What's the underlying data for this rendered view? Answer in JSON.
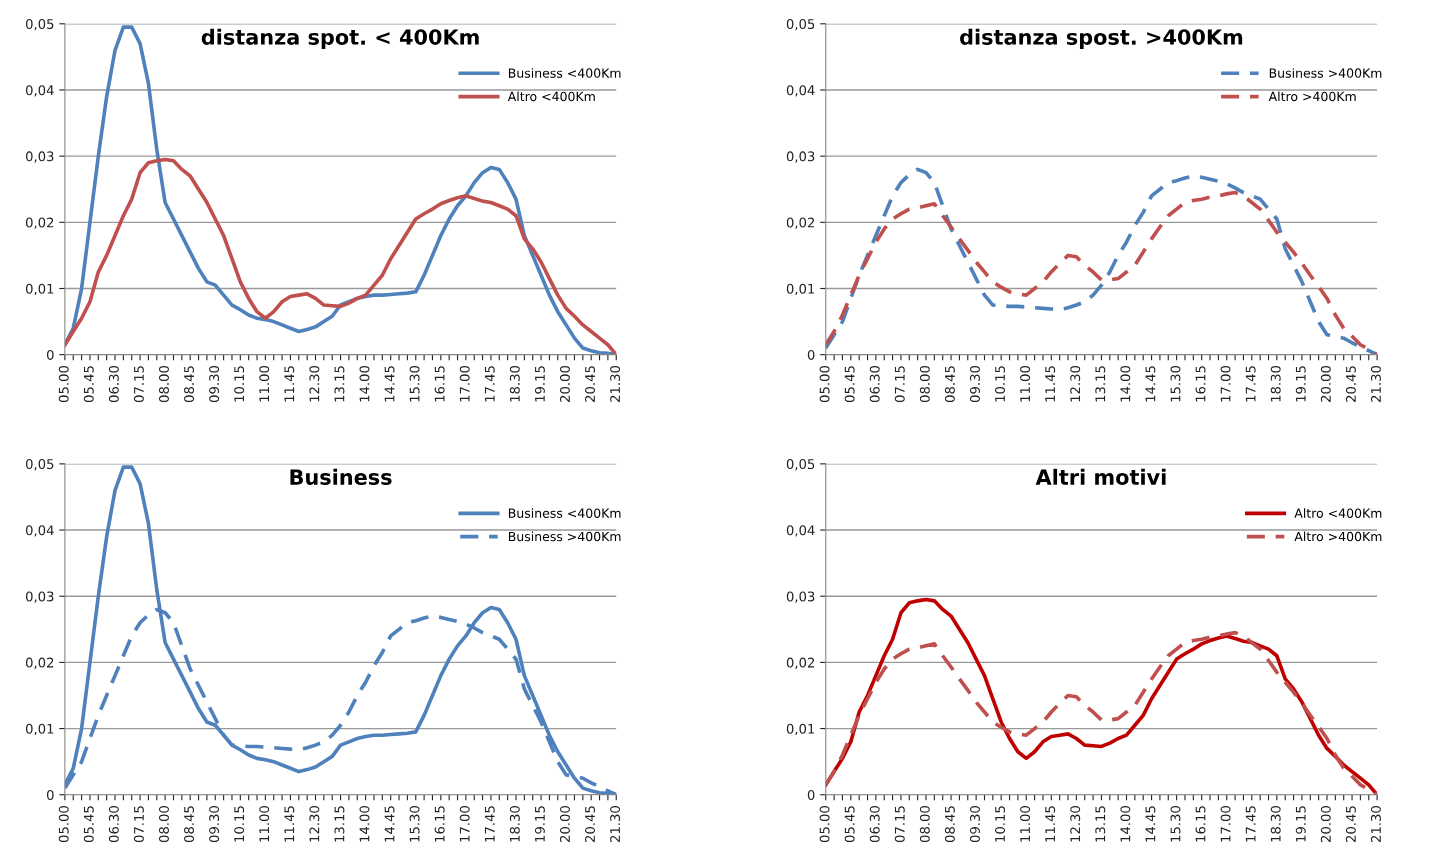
{
  "chart_data": [
    {
      "type": "line",
      "title": "distanza spot. < 400Km",
      "ylim": [
        0,
        0.05
      ],
      "categories": [
        "05.00",
        null,
        null,
        "05.45",
        null,
        null,
        "06.30",
        null,
        null,
        "07.15",
        null,
        null,
        "08.00",
        null,
        null,
        "08.45",
        null,
        null,
        "09.30",
        null,
        null,
        "10.15",
        null,
        null,
        "11.00",
        null,
        null,
        "11.45",
        null,
        null,
        "12.30",
        null,
        null,
        "13.15",
        null,
        null,
        "14.00",
        null,
        null,
        "14.45",
        null,
        null,
        "15.30",
        null,
        null,
        "16.15",
        null,
        null,
        "17.00",
        null,
        null,
        "17.45",
        null,
        null,
        "18.30",
        null,
        null,
        "19.15",
        null,
        null,
        "20.00",
        null,
        null,
        "20.45",
        null,
        null,
        "21.30"
      ],
      "yticks": [
        0,
        {
          "value": 0.01,
          "label": "0,01"
        },
        {
          "value": 0.02,
          "label": "0,02"
        },
        {
          "value": 0.03,
          "label": "0,03"
        },
        {
          "value": 0.04,
          "label": "0,04"
        },
        {
          "value": 0.05,
          "label": "0,05"
        }
      ],
      "grid": "y",
      "legend": "top right",
      "marker": "none",
      "series": [
        {
          "name": "Business <400Km",
          "color": "#4f81bd",
          "line_style": "solid",
          "values": [
            0.0015,
            0.004,
            0.01,
            0.02,
            0.03,
            0.039,
            0.046,
            0.0495,
            0.0495,
            0.047,
            0.041,
            0.031,
            0.023,
            0.0205,
            0.018,
            0.0155,
            0.013,
            0.011,
            0.0105,
            0.009,
            0.0075,
            0.0068,
            0.006,
            0.0055,
            0.0053,
            0.005,
            0.0045,
            0.004,
            0.0035,
            0.0038,
            0.0042,
            0.005,
            0.0058,
            0.0075,
            0.008,
            0.0085,
            0.0088,
            0.009,
            0.009,
            0.0091,
            0.0092,
            0.0093,
            0.0095,
            0.012,
            0.015,
            0.018,
            0.0205,
            0.0225,
            0.024,
            0.026,
            0.0275,
            0.0283,
            0.028,
            0.026,
            0.0235,
            0.018,
            0.015,
            0.012,
            0.009,
            0.0065,
            0.0045,
            0.0025,
            0.001,
            0.0006,
            0.0003,
            0.0002,
            0
          ]
        },
        {
          "name": "Altro <400Km",
          "color": "#c0504d",
          "line_style": "solid",
          "values": [
            0.0015,
            0.0035,
            0.0055,
            0.008,
            0.0125,
            0.015,
            0.018,
            0.021,
            0.0235,
            0.0275,
            0.029,
            0.0293,
            0.0295,
            0.0293,
            0.028,
            0.027,
            0.025,
            0.023,
            0.0205,
            0.018,
            0.0145,
            0.011,
            0.0085,
            0.0065,
            0.0055,
            0.0065,
            0.008,
            0.0088,
            0.009,
            0.0092,
            0.0085,
            0.0075,
            0.0074,
            0.0073,
            0.0078,
            0.0085,
            0.009,
            0.0105,
            0.012,
            0.0145,
            0.0165,
            0.0185,
            0.0205,
            0.0213,
            0.022,
            0.0228,
            0.0233,
            0.0237,
            0.024,
            0.0236,
            0.0232,
            0.023,
            0.0225,
            0.022,
            0.021,
            0.0175,
            0.016,
            0.014,
            0.0115,
            0.009,
            0.007,
            0.0058,
            0.0045,
            0.0035,
            0.0025,
            0.0015,
            0
          ]
        }
      ]
    },
    {
      "type": "line",
      "title": "distanza spost. >400Km",
      "ylim": [
        0,
        0.05
      ],
      "categories": [
        "05.00",
        null,
        null,
        "05.45",
        null,
        null,
        "06.30",
        null,
        null,
        "07.15",
        null,
        null,
        "08.00",
        null,
        null,
        "08.45",
        null,
        null,
        "09.30",
        null,
        null,
        "10.15",
        null,
        null,
        "11.00",
        null,
        null,
        "11.45",
        null,
        null,
        "12.30",
        null,
        null,
        "13.15",
        null,
        null,
        "14.00",
        null,
        null,
        "14.45",
        null,
        null,
        "15.30",
        null,
        null,
        "16.15",
        null,
        null,
        "17.00",
        null,
        null,
        "17.45",
        null,
        null,
        "18.30",
        null,
        null,
        "19.15",
        null,
        null,
        "20.00",
        null,
        null,
        "20.45",
        null,
        null,
        "21.30"
      ],
      "yticks": [
        0,
        {
          "value": 0.01,
          "label": "0,01"
        },
        {
          "value": 0.02,
          "label": "0,02"
        },
        {
          "value": 0.03,
          "label": "0,03"
        },
        {
          "value": 0.04,
          "label": "0,04"
        },
        {
          "value": 0.05,
          "label": "0,05"
        }
      ],
      "grid": "y",
      "legend": "top right",
      "marker": "none",
      "series": [
        {
          "name": "Business >400Km",
          "color": "#4f81bd",
          "line_style": "dashed",
          "values": [
            0.001,
            0.003,
            0.005,
            0.0085,
            0.012,
            0.015,
            0.018,
            0.021,
            0.024,
            0.026,
            0.0272,
            0.028,
            0.0275,
            0.026,
            0.0225,
            0.019,
            0.0165,
            0.014,
            0.0115,
            0.009,
            0.0075,
            0.0074,
            0.0073,
            0.0073,
            0.0072,
            0.0071,
            0.007,
            0.0069,
            0.0068,
            0.0071,
            0.0075,
            0.008,
            0.009,
            0.0105,
            0.0125,
            0.015,
            0.017,
            0.0195,
            0.0215,
            0.024,
            0.025,
            0.026,
            0.0263,
            0.0267,
            0.027,
            0.0268,
            0.0265,
            0.0262,
            0.0258,
            0.0252,
            0.0245,
            0.024,
            0.0235,
            0.022,
            0.0205,
            0.016,
            0.0135,
            0.011,
            0.008,
            0.005,
            0.003,
            0.0028,
            0.0025,
            0.0018,
            0.0012,
            0.0006,
            0
          ]
        },
        {
          "name": "Altro >400Km",
          "color": "#c0504d",
          "line_style": "dashed",
          "values": [
            0.0015,
            0.0035,
            0.006,
            0.009,
            0.012,
            0.0145,
            0.017,
            0.019,
            0.0205,
            0.0213,
            0.022,
            0.0222,
            0.0225,
            0.0228,
            0.021,
            0.0193,
            0.0175,
            0.0158,
            0.014,
            0.0125,
            0.011,
            0.0102,
            0.0095,
            0.0092,
            0.009,
            0.01,
            0.011,
            0.0125,
            0.0138,
            0.015,
            0.0148,
            0.0135,
            0.0125,
            0.0113,
            0.0113,
            0.0115,
            0.0125,
            0.0135,
            0.0155,
            0.0175,
            0.0193,
            0.021,
            0.022,
            0.023,
            0.0233,
            0.0235,
            0.0238,
            0.024,
            0.0243,
            0.0245,
            0.024,
            0.023,
            0.022,
            0.0203,
            0.0185,
            0.017,
            0.0155,
            0.0138,
            0.012,
            0.0103,
            0.0085,
            0.006,
            0.004,
            0.0028,
            0.0015,
            0.0008,
            0
          ]
        }
      ]
    },
    {
      "type": "line",
      "title": "Business",
      "ylim": [
        0,
        0.05
      ],
      "categories": [
        "05.00",
        null,
        null,
        "05.45",
        null,
        null,
        "06.30",
        null,
        null,
        "07.15",
        null,
        null,
        "08.00",
        null,
        null,
        "08.45",
        null,
        null,
        "09.30",
        null,
        null,
        "10.15",
        null,
        null,
        "11.00",
        null,
        null,
        "11.45",
        null,
        null,
        "12.30",
        null,
        null,
        "13.15",
        null,
        null,
        "14.00",
        null,
        null,
        "14.45",
        null,
        null,
        "15.30",
        null,
        null,
        "16.15",
        null,
        null,
        "17.00",
        null,
        null,
        "17.45",
        null,
        null,
        "18.30",
        null,
        null,
        "19.15",
        null,
        null,
        "20.00",
        null,
        null,
        "20.45",
        null,
        null,
        "21.30"
      ],
      "yticks": [
        0,
        {
          "value": 0.01,
          "label": "0,01"
        },
        {
          "value": 0.02,
          "label": "0,02"
        },
        {
          "value": 0.03,
          "label": "0,03"
        },
        {
          "value": 0.04,
          "label": "0,04"
        },
        {
          "value": 0.05,
          "label": "0,05"
        }
      ],
      "grid": "y",
      "legend": "top right",
      "marker": "none",
      "series": [
        {
          "name": "Business <400Km",
          "color": "#4f81bd",
          "line_style": "solid",
          "values": [
            0.0015,
            0.004,
            0.01,
            0.02,
            0.03,
            0.039,
            0.046,
            0.0495,
            0.0495,
            0.047,
            0.041,
            0.031,
            0.023,
            0.0205,
            0.018,
            0.0155,
            0.013,
            0.011,
            0.0105,
            0.009,
            0.0075,
            0.0068,
            0.006,
            0.0055,
            0.0053,
            0.005,
            0.0045,
            0.004,
            0.0035,
            0.0038,
            0.0042,
            0.005,
            0.0058,
            0.0075,
            0.008,
            0.0085,
            0.0088,
            0.009,
            0.009,
            0.0091,
            0.0092,
            0.0093,
            0.0095,
            0.012,
            0.015,
            0.018,
            0.0205,
            0.0225,
            0.024,
            0.026,
            0.0275,
            0.0283,
            0.028,
            0.026,
            0.0235,
            0.018,
            0.015,
            0.012,
            0.009,
            0.0065,
            0.0045,
            0.0025,
            0.001,
            0.0006,
            0.0003,
            0.0002,
            0
          ]
        },
        {
          "name": "Business >400Km",
          "color": "#4f81bd",
          "line_style": "dashed",
          "values": [
            0.001,
            0.003,
            0.005,
            0.0085,
            0.012,
            0.015,
            0.018,
            0.021,
            0.024,
            0.026,
            0.0272,
            0.028,
            0.0275,
            0.026,
            0.0225,
            0.019,
            0.0165,
            0.014,
            0.0115,
            0.009,
            0.0075,
            0.0074,
            0.0073,
            0.0073,
            0.0072,
            0.0071,
            0.007,
            0.0069,
            0.0068,
            0.0071,
            0.0075,
            0.008,
            0.009,
            0.0105,
            0.0125,
            0.015,
            0.017,
            0.0195,
            0.0215,
            0.024,
            0.025,
            0.026,
            0.0263,
            0.0267,
            0.027,
            0.0268,
            0.0265,
            0.0262,
            0.0258,
            0.0252,
            0.0245,
            0.024,
            0.0235,
            0.022,
            0.0205,
            0.016,
            0.0135,
            0.011,
            0.008,
            0.005,
            0.003,
            0.0028,
            0.0025,
            0.0018,
            0.0012,
            0.0006,
            0
          ]
        }
      ]
    },
    {
      "type": "line",
      "title": "Altri motivi",
      "ylim": [
        0,
        0.05
      ],
      "categories": [
        "05.00",
        null,
        null,
        "05.45",
        null,
        null,
        "06.30",
        null,
        null,
        "07.15",
        null,
        null,
        "08.00",
        null,
        null,
        "08.45",
        null,
        null,
        "09.30",
        null,
        null,
        "10.15",
        null,
        null,
        "11.00",
        null,
        null,
        "11.45",
        null,
        null,
        "12.30",
        null,
        null,
        "13.15",
        null,
        null,
        "14.00",
        null,
        null,
        "14.45",
        null,
        null,
        "15.30",
        null,
        null,
        "16.15",
        null,
        null,
        "17.00",
        null,
        null,
        "17.45",
        null,
        null,
        "18.30",
        null,
        null,
        "19.15",
        null,
        null,
        "20.00",
        null,
        null,
        "20.45",
        null,
        null,
        "21.30"
      ],
      "yticks": [
        0,
        {
          "value": 0.01,
          "label": "0,01"
        },
        {
          "value": 0.02,
          "label": "0,02"
        },
        {
          "value": 0.03,
          "label": "0,03"
        },
        {
          "value": 0.04,
          "label": "0,04"
        },
        {
          "value": 0.05,
          "label": "0,05"
        }
      ],
      "grid": "y",
      "legend": "top right",
      "marker": "none",
      "series": [
        {
          "name": "Altro <400Km",
          "color": "#c00000",
          "line_style": "solid",
          "values": [
            0.0015,
            0.0035,
            0.0055,
            0.008,
            0.0125,
            0.015,
            0.018,
            0.021,
            0.0235,
            0.0275,
            0.029,
            0.0293,
            0.0295,
            0.0293,
            0.028,
            0.027,
            0.025,
            0.023,
            0.0205,
            0.018,
            0.0145,
            0.011,
            0.0085,
            0.0065,
            0.0055,
            0.0065,
            0.008,
            0.0088,
            0.009,
            0.0092,
            0.0085,
            0.0075,
            0.0074,
            0.0073,
            0.0078,
            0.0085,
            0.009,
            0.0105,
            0.012,
            0.0145,
            0.0165,
            0.0185,
            0.0205,
            0.0213,
            0.022,
            0.0228,
            0.0233,
            0.0237,
            0.024,
            0.0236,
            0.0232,
            0.023,
            0.0225,
            0.022,
            0.021,
            0.0175,
            0.016,
            0.014,
            0.0115,
            0.009,
            0.007,
            0.0058,
            0.0045,
            0.0035,
            0.0025,
            0.0015,
            0
          ]
        },
        {
          "name": "Altro >400Km",
          "color": "#c0504d",
          "line_style": "dashed",
          "values": [
            0.0015,
            0.0035,
            0.006,
            0.009,
            0.012,
            0.0145,
            0.017,
            0.019,
            0.0205,
            0.0213,
            0.022,
            0.0222,
            0.0225,
            0.0228,
            0.021,
            0.0193,
            0.0175,
            0.0158,
            0.014,
            0.0125,
            0.011,
            0.0102,
            0.0095,
            0.0092,
            0.009,
            0.01,
            0.011,
            0.0125,
            0.0138,
            0.015,
            0.0148,
            0.0135,
            0.0125,
            0.0113,
            0.0113,
            0.0115,
            0.0125,
            0.0135,
            0.0155,
            0.0175,
            0.0193,
            0.021,
            0.022,
            0.023,
            0.0233,
            0.0235,
            0.0238,
            0.024,
            0.0243,
            0.0245,
            0.024,
            0.023,
            0.022,
            0.0203,
            0.0185,
            0.017,
            0.0155,
            0.0138,
            0.012,
            0.0103,
            0.0085,
            0.006,
            0.004,
            0.0028,
            0.0015,
            0.0008,
            0
          ]
        }
      ]
    }
  ]
}
